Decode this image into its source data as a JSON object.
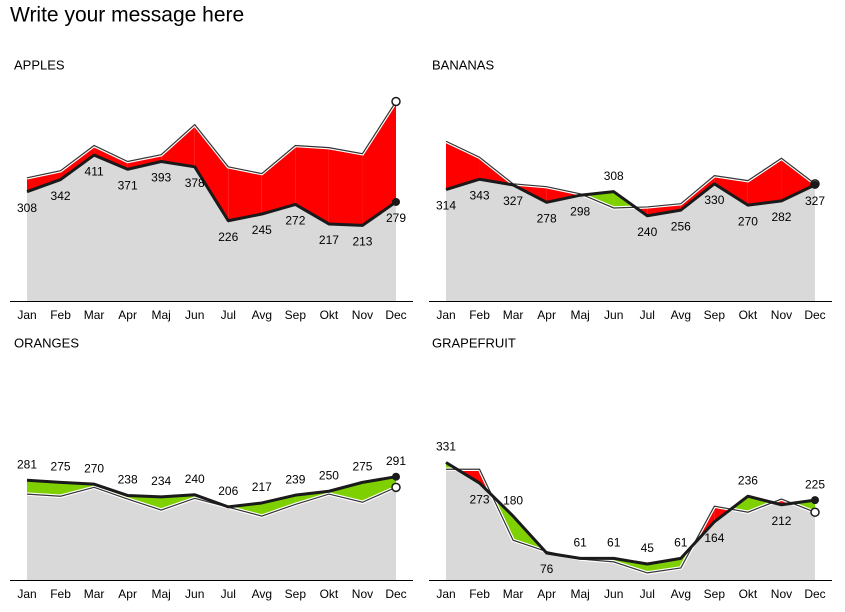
{
  "title": "Write your message here",
  "chart_data": [
    {
      "type": "line",
      "title": "APPLES",
      "categories": [
        "Jan",
        "Feb",
        "Mar",
        "Apr",
        "Maj",
        "Jun",
        "Jul",
        "Avg",
        "Sep",
        "Okt",
        "Nov",
        "Dec"
      ],
      "series": [
        {
          "color": "#1a1a1a",
          "values": [
            308,
            342,
            411,
            371,
            393,
            378,
            226,
            245,
            272,
            217,
            213,
            279
          ]
        },
        {
          "color": "#333333",
          "values": [
            347,
            367,
            438,
            393,
            412,
            497,
            378,
            359,
            438,
            432,
            415,
            562
          ]
        }
      ],
      "ylim": [
        0,
        600
      ],
      "above_color": "#ff0000",
      "below_color": "#7ed000"
    },
    {
      "type": "line",
      "title": "BANANAS",
      "categories": [
        "Jan",
        "Feb",
        "Mar",
        "Apr",
        "Maj",
        "Jun",
        "Jul",
        "Avg",
        "Sep",
        "Okt",
        "Nov",
        "Dec"
      ],
      "series": [
        {
          "color": "#1a1a1a",
          "values": [
            314,
            343,
            327,
            278,
            298,
            308,
            240,
            256,
            330,
            270,
            282,
            327
          ]
        },
        {
          "color": "#333333",
          "values": [
            450,
            405,
            330,
            322,
            302,
            262,
            265,
            274,
            353,
            339,
            402,
            330
          ]
        }
      ],
      "ylim": [
        0,
        600
      ],
      "above_color": "#ff0000",
      "below_color": "#7ed000"
    },
    {
      "type": "line",
      "title": "ORANGES",
      "categories": [
        "Jan",
        "Feb",
        "Mar",
        "Apr",
        "Maj",
        "Jun",
        "Jul",
        "Avg",
        "Sep",
        "Okt",
        "Nov",
        "Dec"
      ],
      "series": [
        {
          "color": "#1a1a1a",
          "values": [
            281,
            275,
            270,
            238,
            234,
            240,
            206,
            217,
            239,
            250,
            275,
            291
          ]
        },
        {
          "color": "#333333",
          "values": [
            242,
            236,
            261,
            228,
            197,
            230,
            205,
            180,
            213,
            242,
            219,
            261
          ]
        }
      ],
      "ylim": [
        0,
        600
      ],
      "above_color": "#ff0000",
      "below_color": "#7ed000"
    },
    {
      "type": "line",
      "title": "GRAPEFRUIT",
      "categories": [
        "Jan",
        "Feb",
        "Mar",
        "Apr",
        "Maj",
        "Jun",
        "Jul",
        "Avg",
        "Sep",
        "Okt",
        "Nov",
        "Dec"
      ],
      "series": [
        {
          "color": "#1a1a1a",
          "values": [
            331,
            273,
            180,
            76,
            61,
            61,
            45,
            61,
            164,
            236,
            212,
            225
          ]
        },
        {
          "color": "#333333",
          "values": [
            312,
            312,
            112,
            80,
            59,
            51,
            20,
            34,
            208,
            191,
            228,
            191
          ]
        }
      ],
      "ylim": [
        0,
        600
      ],
      "above_color": "#ff0000",
      "below_color": "#7ed000"
    }
  ]
}
